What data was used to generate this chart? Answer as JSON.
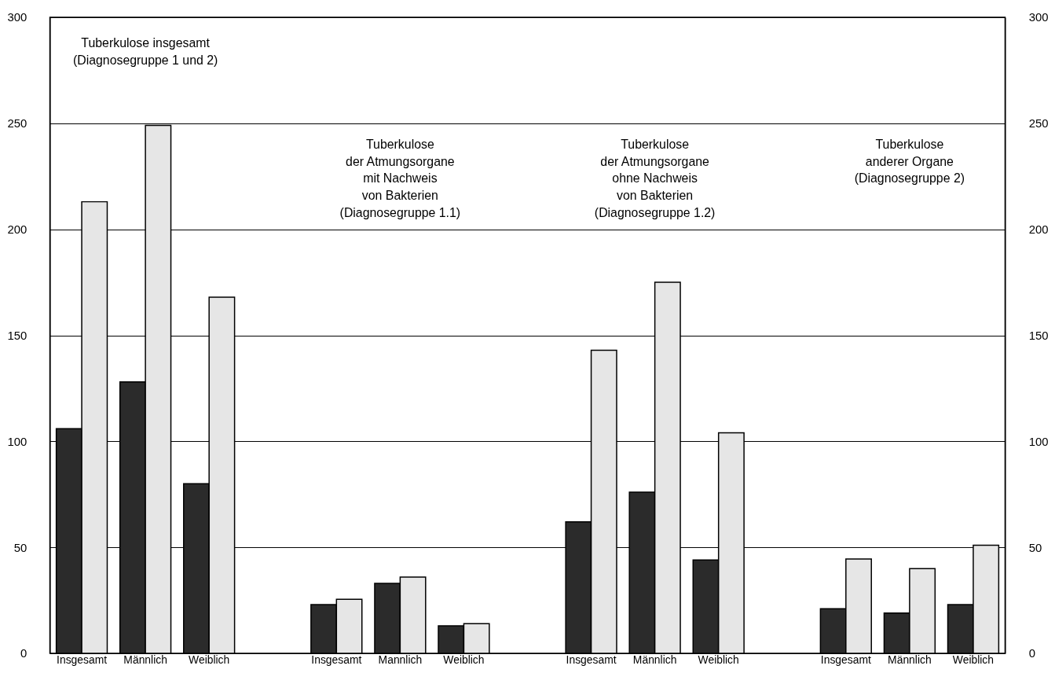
{
  "chart_data": {
    "type": "bar",
    "categories": [
      "Insgesamt",
      "Männlich",
      "Weiblich",
      "Insgesamt",
      "Mannlich",
      "Weiblich",
      "Insgesamt",
      "Männlich",
      "Weiblich",
      "Insgesamt",
      "Männlich",
      "Weiblich"
    ],
    "series": [
      {
        "color": "#2b2b2b",
        "values": [
          106,
          128,
          80,
          23,
          33,
          13,
          62,
          76,
          44,
          21,
          19,
          23
        ]
      },
      {
        "color": "#e6e6e6",
        "values": [
          213,
          249,
          168,
          25.5,
          36,
          14,
          143,
          175,
          104,
          44.5,
          40,
          51
        ]
      }
    ],
    "ylim": [
      0,
      300
    ],
    "yticks": [
      0,
      50,
      100,
      150,
      200,
      250,
      300
    ],
    "y2lim": [
      0,
      300
    ],
    "y2ticks": [
      0,
      50,
      100,
      150,
      200,
      250,
      300
    ],
    "annotations": [
      "Tuberkulose insgesamt\n(Diagnosegruppe 1 und 2)",
      "Tuberkulose\nder Atmungsorgane\nmit Nachweis\nvon Bakterien\n(Diagnosegruppe 1.1)",
      "Tuberkulose\nder Atmungsorgane\nohne Nachweis\nvon Bakterien\n(Diagnosegruppe 1.2)",
      "Tuberkulose\nanderer Organe\n(Diagnosegruppe 2)"
    ],
    "grid": "y"
  }
}
